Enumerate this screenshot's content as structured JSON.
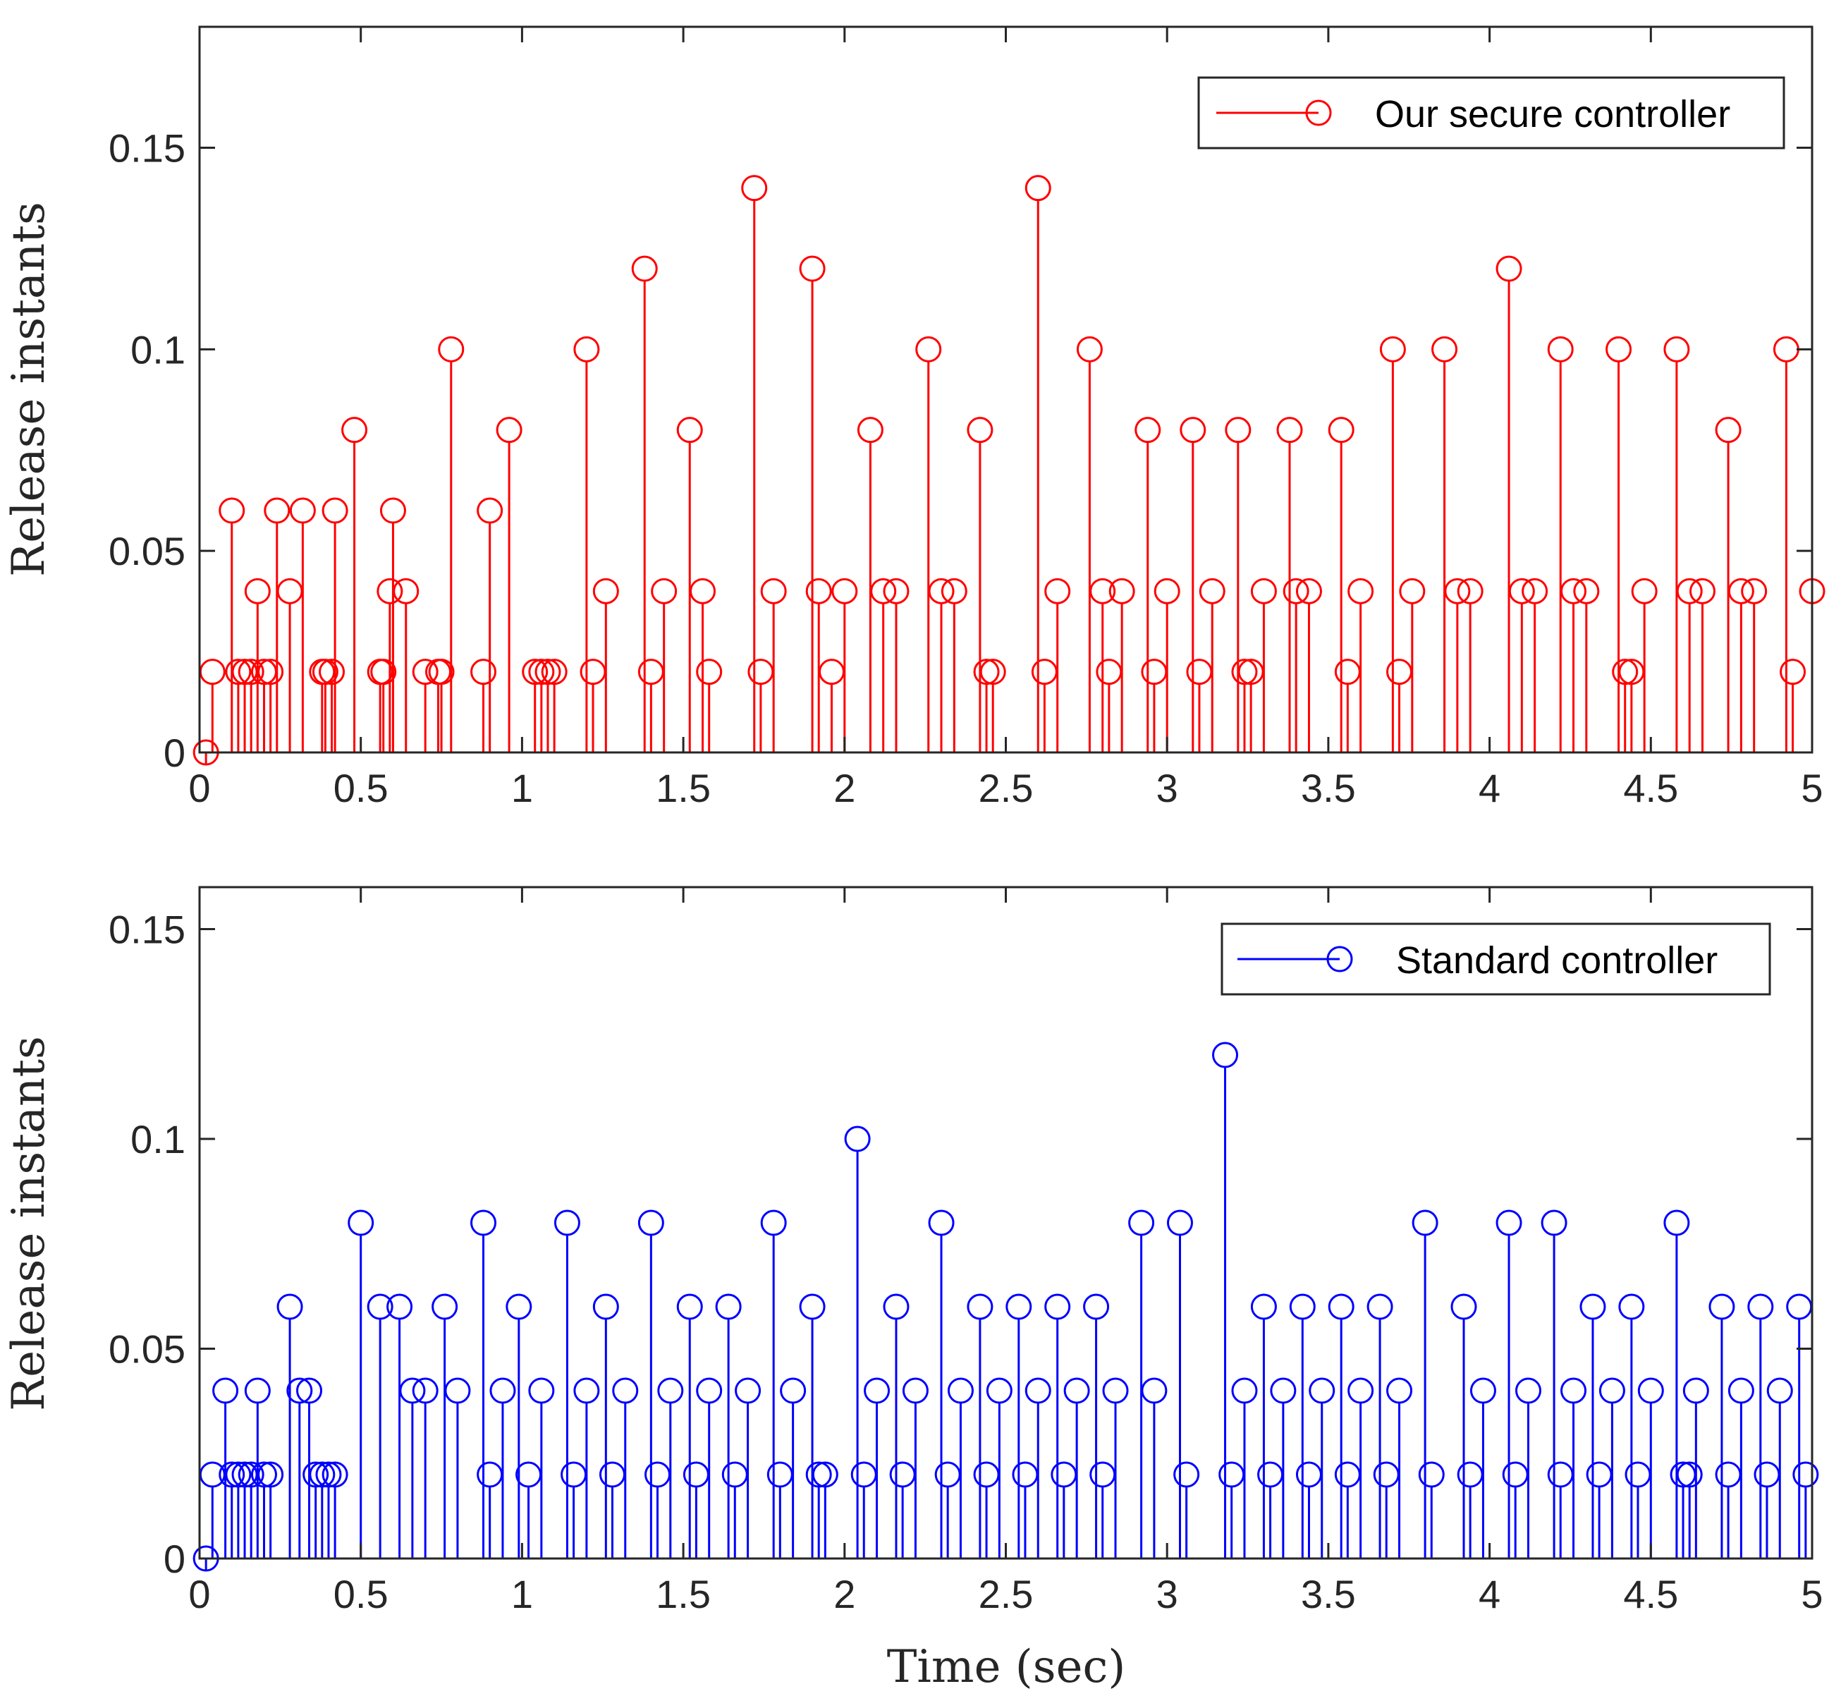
{
  "chart_data": [
    {
      "type": "stem",
      "name": "top",
      "series_name": "Our secure controller",
      "color": "#ff0000",
      "ylabel": "Release instants",
      "xlabel": "",
      "xlim": [
        0,
        5
      ],
      "ylim": [
        0,
        0.18
      ],
      "xticks": [
        0,
        0.5,
        1,
        1.5,
        2,
        2.5,
        3,
        3.5,
        4,
        4.5,
        5
      ],
      "xtick_labels": [
        "0",
        "0.5",
        "1",
        "1.5",
        "2",
        "2.5",
        "3",
        "3.5",
        "4",
        "4.5",
        "5"
      ],
      "yticks": [
        0,
        0.05,
        0.1,
        0.15
      ],
      "ytick_labels": [
        "0",
        "0.05",
        "0.1",
        "0.15"
      ],
      "legend_position": "top-right",
      "x": [
        0.02,
        0.04,
        0.1,
        0.12,
        0.14,
        0.16,
        0.18,
        0.2,
        0.22,
        0.24,
        0.28,
        0.32,
        0.38,
        0.39,
        0.41,
        0.42,
        0.48,
        0.56,
        0.57,
        0.59,
        0.6,
        0.64,
        0.7,
        0.74,
        0.75,
        0.78,
        0.88,
        0.9,
        0.96,
        1.04,
        1.06,
        1.08,
        1.1,
        1.2,
        1.22,
        1.26,
        1.38,
        1.4,
        1.44,
        1.52,
        1.56,
        1.58,
        1.72,
        1.74,
        1.78,
        1.9,
        1.92,
        1.96,
        2.0,
        2.08,
        2.12,
        2.16,
        2.26,
        2.3,
        2.34,
        2.42,
        2.44,
        2.46,
        2.6,
        2.62,
        2.66,
        2.76,
        2.8,
        2.82,
        2.86,
        2.94,
        2.96,
        3.0,
        3.08,
        3.1,
        3.14,
        3.22,
        3.24,
        3.26,
        3.3,
        3.38,
        3.4,
        3.44,
        3.54,
        3.56,
        3.6,
        3.7,
        3.72,
        3.76,
        3.86,
        3.9,
        3.94,
        4.06,
        4.1,
        4.14,
        4.22,
        4.26,
        4.3,
        4.4,
        4.42,
        4.44,
        4.48,
        4.58,
        4.62,
        4.66,
        4.74,
        4.78,
        4.82,
        4.92,
        4.94,
        5.0
      ],
      "values": [
        0,
        0.02,
        0.06,
        0.02,
        0.02,
        0.02,
        0.04,
        0.02,
        0.02,
        0.06,
        0.04,
        0.06,
        0.02,
        0.02,
        0.02,
        0.06,
        0.08,
        0.02,
        0.02,
        0.04,
        0.06,
        0.04,
        0.02,
        0.02,
        0.02,
        0.1,
        0.02,
        0.06,
        0.08,
        0.02,
        0.02,
        0.02,
        0.02,
        0.1,
        0.02,
        0.04,
        0.12,
        0.02,
        0.04,
        0.08,
        0.04,
        0.02,
        0.14,
        0.02,
        0.04,
        0.12,
        0.04,
        0.02,
        0.04,
        0.08,
        0.04,
        0.04,
        0.1,
        0.04,
        0.04,
        0.08,
        0.02,
        0.02,
        0.14,
        0.02,
        0.04,
        0.1,
        0.04,
        0.02,
        0.04,
        0.08,
        0.02,
        0.04,
        0.08,
        0.02,
        0.04,
        0.08,
        0.02,
        0.02,
        0.04,
        0.08,
        0.04,
        0.04,
        0.08,
        0.02,
        0.04,
        0.1,
        0.02,
        0.04,
        0.1,
        0.04,
        0.04,
        0.12,
        0.04,
        0.04,
        0.1,
        0.04,
        0.04,
        0.1,
        0.02,
        0.02,
        0.04,
        0.1,
        0.04,
        0.04,
        0.08,
        0.04,
        0.04,
        0.1,
        0.02,
        0.04
      ]
    },
    {
      "type": "stem",
      "name": "bottom",
      "series_name": "Standard controller",
      "color": "#0000ff",
      "ylabel": "Release instants",
      "xlabel": "Time (sec)",
      "xlim": [
        0,
        5
      ],
      "ylim": [
        0,
        0.16
      ],
      "xticks": [
        0,
        0.5,
        1,
        1.5,
        2,
        2.5,
        3,
        3.5,
        4,
        4.5,
        5
      ],
      "xtick_labels": [
        "0",
        "0.5",
        "1",
        "1.5",
        "2",
        "2.5",
        "3",
        "3.5",
        "4",
        "4.5",
        "5"
      ],
      "yticks": [
        0,
        0.05,
        0.1,
        0.15
      ],
      "ytick_labels": [
        "0",
        "0.05",
        "0.1",
        "0.15"
      ],
      "legend_position": "top-right",
      "x": [
        0.02,
        0.04,
        0.08,
        0.1,
        0.12,
        0.14,
        0.16,
        0.18,
        0.2,
        0.22,
        0.28,
        0.31,
        0.34,
        0.36,
        0.38,
        0.4,
        0.42,
        0.5,
        0.56,
        0.62,
        0.66,
        0.7,
        0.76,
        0.8,
        0.88,
        0.9,
        0.94,
        0.99,
        1.02,
        1.06,
        1.14,
        1.16,
        1.2,
        1.26,
        1.28,
        1.32,
        1.4,
        1.42,
        1.46,
        1.52,
        1.54,
        1.58,
        1.64,
        1.66,
        1.7,
        1.78,
        1.8,
        1.84,
        1.9,
        1.92,
        1.94,
        2.04,
        2.06,
        2.1,
        2.16,
        2.18,
        2.22,
        2.3,
        2.32,
        2.36,
        2.42,
        2.44,
        2.48,
        2.54,
        2.56,
        2.6,
        2.66,
        2.68,
        2.72,
        2.78,
        2.8,
        2.84,
        2.92,
        2.96,
        3.04,
        3.06,
        3.18,
        3.2,
        3.24,
        3.3,
        3.32,
        3.36,
        3.42,
        3.44,
        3.48,
        3.54,
        3.56,
        3.6,
        3.66,
        3.68,
        3.72,
        3.8,
        3.82,
        3.92,
        3.94,
        3.98,
        4.06,
        4.08,
        4.12,
        4.2,
        4.22,
        4.26,
        4.32,
        4.34,
        4.38,
        4.44,
        4.46,
        4.5,
        4.58,
        4.6,
        4.62,
        4.64,
        4.72,
        4.74,
        4.78,
        4.84,
        4.86,
        4.9,
        4.96,
        4.98
      ],
      "values": [
        0,
        0.02,
        0.04,
        0.02,
        0.02,
        0.02,
        0.02,
        0.04,
        0.02,
        0.02,
        0.06,
        0.04,
        0.04,
        0.02,
        0.02,
        0.02,
        0.02,
        0.08,
        0.06,
        0.06,
        0.04,
        0.04,
        0.06,
        0.04,
        0.08,
        0.02,
        0.04,
        0.06,
        0.02,
        0.04,
        0.08,
        0.02,
        0.04,
        0.06,
        0.02,
        0.04,
        0.08,
        0.02,
        0.04,
        0.06,
        0.02,
        0.04,
        0.06,
        0.02,
        0.04,
        0.08,
        0.02,
        0.04,
        0.06,
        0.02,
        0.02,
        0.1,
        0.02,
        0.04,
        0.06,
        0.02,
        0.04,
        0.08,
        0.02,
        0.04,
        0.06,
        0.02,
        0.04,
        0.06,
        0.02,
        0.04,
        0.06,
        0.02,
        0.04,
        0.06,
        0.02,
        0.04,
        0.08,
        0.04,
        0.08,
        0.02,
        0.12,
        0.02,
        0.04,
        0.06,
        0.02,
        0.04,
        0.06,
        0.02,
        0.04,
        0.06,
        0.02,
        0.04,
        0.06,
        0.02,
        0.04,
        0.08,
        0.02,
        0.06,
        0.02,
        0.04,
        0.08,
        0.02,
        0.04,
        0.08,
        0.02,
        0.04,
        0.06,
        0.02,
        0.04,
        0.06,
        0.02,
        0.04,
        0.08,
        0.02,
        0.02,
        0.04,
        0.06,
        0.02,
        0.04,
        0.06,
        0.02,
        0.04,
        0.06,
        0.02
      ]
    }
  ]
}
